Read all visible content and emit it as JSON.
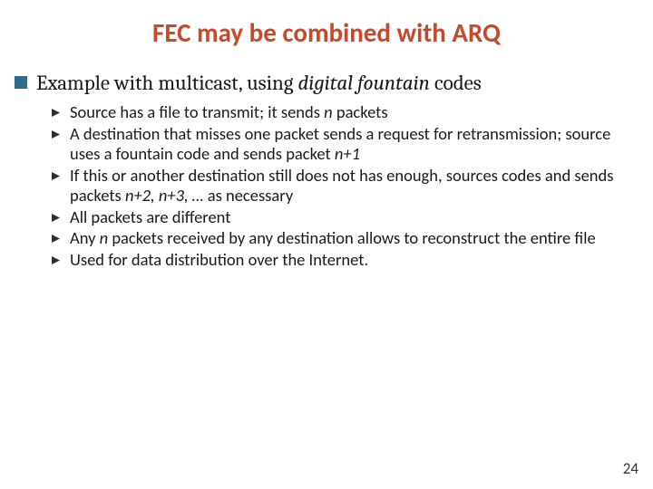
{
  "colors": {
    "title": "#c44a2b",
    "square_bullet": "#2f6b8f",
    "tri_bullet": "#2f2f2f",
    "body_text": "#1a1a1a",
    "page_num": "#333333"
  },
  "title": "FEC may be combined with ARQ",
  "main_bullet": {
    "pre": "Example with multicast, using ",
    "italic": "digital fountain",
    "post": " codes"
  },
  "sub_bullets": [
    {
      "segments": [
        {
          "t": "Source has a file to transmit; it sends "
        },
        {
          "t": "n",
          "i": true
        },
        {
          "t": " packets"
        }
      ]
    },
    {
      "segments": [
        {
          "t": "A destination that misses one packet sends a request for retransmission; source uses a fountain code and sends packet "
        },
        {
          "t": "n+1",
          "i": true
        }
      ]
    },
    {
      "segments": [
        {
          "t": "If this or another destination still does not has enough, sources codes and sends packets "
        },
        {
          "t": "n+2,  n+3, …",
          "i": true
        },
        {
          "t": " as necessary"
        }
      ]
    },
    {
      "segments": [
        {
          "t": "All packets are different"
        }
      ]
    },
    {
      "segments": [
        {
          "t": "Any "
        },
        {
          "t": "n",
          "i": true
        },
        {
          "t": " packets received by any destination allows to reconstruct the entire file"
        }
      ]
    },
    {
      "segments": [
        {
          "t": "Used for data distribution over the Internet."
        }
      ]
    }
  ],
  "page_number": "24"
}
